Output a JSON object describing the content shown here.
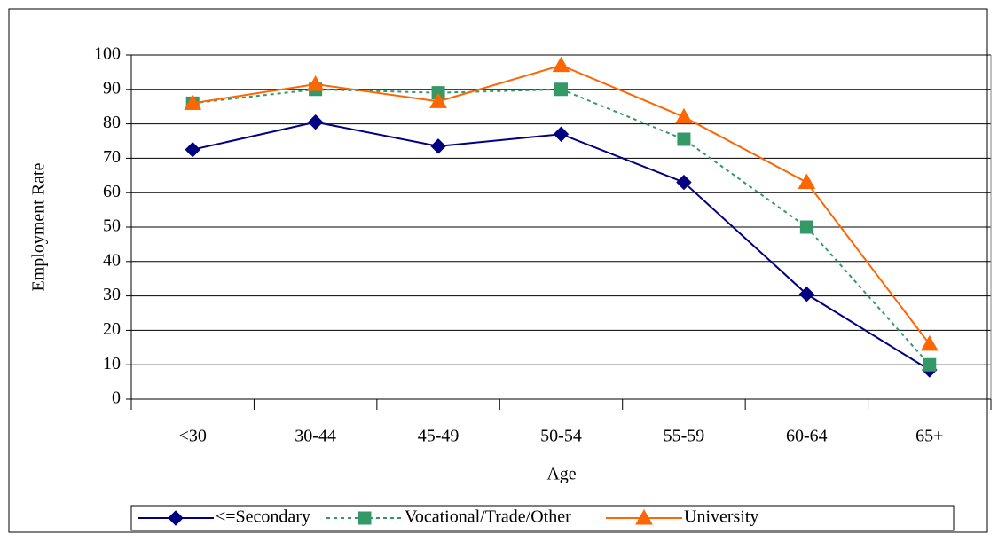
{
  "chart_data": {
    "type": "line",
    "x_label": "Age",
    "y_label": "Employment Rate",
    "categories": [
      "<30",
      "30-44",
      "45-49",
      "50-54",
      "55-59",
      "60-64",
      "65+"
    ],
    "series": [
      {
        "name": "<=Secondary",
        "color": "#000080",
        "marker": "diamond",
        "dash": "solid",
        "values": [
          72.5,
          80.5,
          73.5,
          77,
          63,
          30.5,
          8.5
        ]
      },
      {
        "name": "Vocational/Trade/Other",
        "color": "#339966",
        "marker": "square",
        "dash": "dashed",
        "values": [
          86,
          90,
          89,
          90,
          75.5,
          50,
          10
        ]
      },
      {
        "name": "University",
        "color": "#ff6600",
        "marker": "triangle",
        "dash": "solid",
        "values": [
          86,
          91.5,
          86.5,
          97,
          82,
          63,
          16
        ]
      }
    ],
    "ylim": [
      0,
      100
    ],
    "yticks": [
      0,
      10,
      20,
      30,
      40,
      50,
      60,
      70,
      80,
      90,
      100
    ],
    "grid": true,
    "legend": "bottom"
  }
}
